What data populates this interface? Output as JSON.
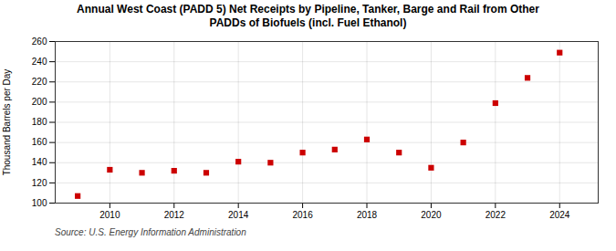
{
  "chart_data": {
    "type": "scatter",
    "title": "Annual West Coast (PADD 5) Net Receipts by Pipeline, Tanker, Barge and Rail from Other\nPADDs of Biofuels (incl. Fuel Ethanol)",
    "ylabel": "Thousand Barrels per Day",
    "source": "Source: U.S. Energy Information Administration",
    "x": [
      2009,
      2010,
      2011,
      2012,
      2013,
      2014,
      2015,
      2016,
      2017,
      2018,
      2019,
      2020,
      2021,
      2022,
      2023,
      2024
    ],
    "values": [
      107,
      133,
      130,
      132,
      130,
      141,
      140,
      150,
      153,
      163,
      150,
      135,
      160,
      199,
      224,
      249
    ],
    "color": "#cc0000",
    "marker": "square",
    "xlim": [
      2008.3,
      2025.2
    ],
    "xticks": [
      2010,
      2012,
      2014,
      2016,
      2018,
      2020,
      2022,
      2024
    ],
    "ylim": [
      100,
      260
    ],
    "yticks": [
      100,
      120,
      140,
      160,
      180,
      200,
      220,
      240,
      260
    ],
    "grid": true
  }
}
